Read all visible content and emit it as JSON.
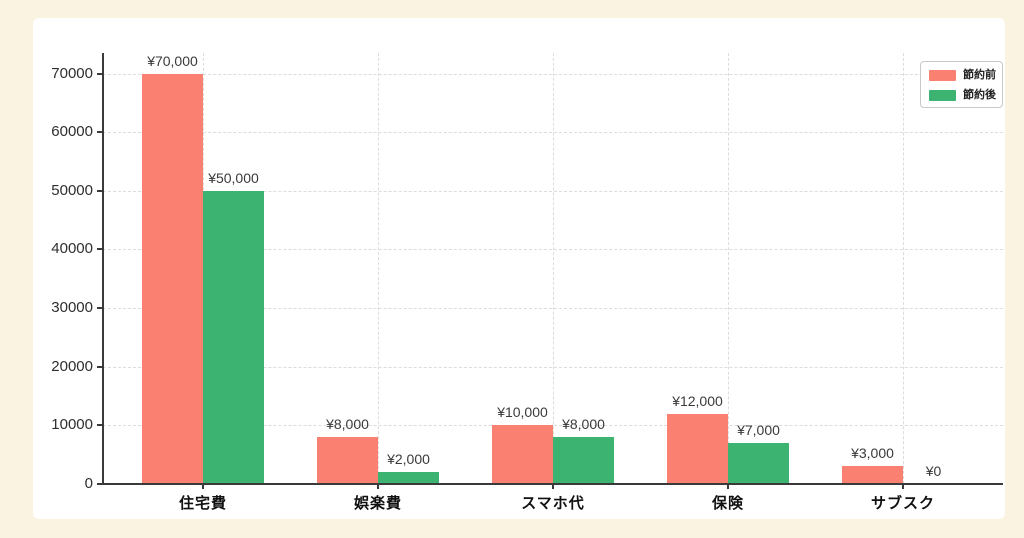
{
  "page": {
    "background_color": "#FBF3E1",
    "card_background": "#FFFFFF"
  },
  "chart_data": {
    "type": "bar",
    "title": "",
    "xlabel": "",
    "ylabel": "",
    "categories": [
      "住宅費",
      "娯楽費",
      "スマホ代",
      "保険",
      "サブスク"
    ],
    "series": [
      {
        "name": "節約前",
        "color": "#FA8072",
        "values": [
          70000,
          8000,
          10000,
          12000,
          3000
        ],
        "labels": [
          "¥70,000",
          "¥8,000",
          "¥10,000",
          "¥12,000",
          "¥3,000"
        ]
      },
      {
        "name": "節約後",
        "color": "#3CB371",
        "values": [
          50000,
          2000,
          8000,
          7000,
          0
        ],
        "labels": [
          "¥50,000",
          "¥2,000",
          "¥8,000",
          "¥7,000",
          "¥0"
        ]
      }
    ],
    "y_ticks": [
      0,
      10000,
      20000,
      30000,
      40000,
      50000,
      60000,
      70000
    ],
    "y_tick_labels": [
      "0",
      "10000",
      "20000",
      "30000",
      "40000",
      "50000",
      "60000",
      "70000"
    ],
    "ylim": [
      0,
      73500
    ],
    "grid": true,
    "grid_style": "dashed",
    "legend_position": "top-right",
    "spine_color": "#3A3A3A",
    "grid_color": "#DCDCDC"
  }
}
